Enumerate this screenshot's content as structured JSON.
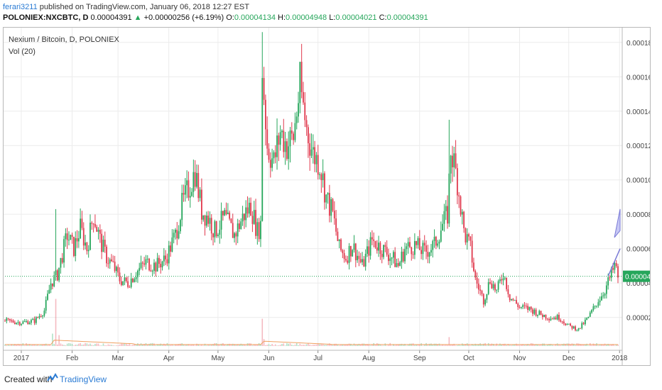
{
  "header": {
    "author": "ferari3211",
    "published_text": "published on TradingView.com, January 06, 2018 12:27 EST"
  },
  "ohlc": {
    "symbol": "POLONIEX:NXCBTC, D",
    "last": "0.00004391",
    "arrow": "▲",
    "change": "+0.00000256 (+6.19%)",
    "o_label": "O:",
    "o": "0.00004134",
    "h_label": "H:",
    "h": "0.00004948",
    "l_label": "L:",
    "l": "0.00004021",
    "c_label": "C:",
    "c": "0.00004391"
  },
  "legend": {
    "title": "Nexium / Bitcoin, D, POLONIEX",
    "volume": "Vol (20)"
  },
  "footer": {
    "created_with": "Created with",
    "brand": "TradingView"
  },
  "colors": {
    "up": "#26a65b",
    "down": "#e0394d",
    "grid": "#ececec",
    "price_line": "#26a65b",
    "accent": "#2a7bd4",
    "vol_ma": "#f0a060",
    "projection_fill": "#c7c8f5"
  },
  "chart_data": {
    "type": "candlestick",
    "title": "Nexium / Bitcoin, D, POLONIEX",
    "y_ticks": [
      "0.00018000",
      "0.00016000",
      "0.00014000",
      "0.00012000",
      "0.00010000",
      "0.00008000",
      "0.00006000",
      "0.00004000",
      "0.00002000"
    ],
    "y_range": [
      2.5e-06,
      0.000189
    ],
    "last_price_label": "0.00004391",
    "last_price": 4.391e-05,
    "x_labels": [
      "2017",
      "Feb",
      "Mar",
      "Apr",
      "May",
      "Jun",
      "Jul",
      "Aug",
      "Sep",
      "Oct",
      "Nov",
      "Dec",
      "2018"
    ],
    "price_path_day_close": [
      [
        0,
        1.8e-05
      ],
      [
        10,
        1.7e-05
      ],
      [
        18,
        1.8e-05
      ],
      [
        24,
        2.4e-05
      ],
      [
        28,
        4e-05
      ],
      [
        32,
        4.5e-05
      ],
      [
        38,
        6.8e-05
      ],
      [
        42,
        6e-05
      ],
      [
        46,
        7.2e-05
      ],
      [
        50,
        6e-05
      ],
      [
        54,
        8e-05
      ],
      [
        58,
        6.5e-05
      ],
      [
        62,
        5.5e-05
      ],
      [
        66,
        5e-05
      ],
      [
        70,
        4.2e-05
      ],
      [
        75,
        4e-05
      ],
      [
        80,
        4.6e-05
      ],
      [
        86,
        5.2e-05
      ],
      [
        92,
        5e-05
      ],
      [
        98,
        5.4e-05
      ],
      [
        104,
        6.8e-05
      ],
      [
        108,
        8.5e-05
      ],
      [
        112,
        9.5e-05
      ],
      [
        116,
        0.000105
      ],
      [
        120,
        8.2e-05
      ],
      [
        124,
        7.8e-05
      ],
      [
        128,
        7e-05
      ],
      [
        134,
        7.8e-05
      ],
      [
        140,
        6.8e-05
      ],
      [
        146,
        8e-05
      ],
      [
        150,
        8.5e-05
      ],
      [
        154,
        7e-05
      ],
      [
        156,
        7.4e-05
      ],
      [
        157,
        0.000165
      ],
      [
        160,
        0.00012
      ],
      [
        164,
        0.00011
      ],
      [
        168,
        0.000128
      ],
      [
        172,
        0.00012
      ],
      [
        176,
        0.000125
      ],
      [
        180,
        0.000155
      ],
      [
        184,
        0.00013
      ],
      [
        188,
        0.000115
      ],
      [
        192,
        0.00011
      ],
      [
        196,
        9e-05
      ],
      [
        200,
        8e-05
      ],
      [
        204,
        6e-05
      ],
      [
        208,
        5.5e-05
      ],
      [
        212,
        6.2e-05
      ],
      [
        218,
        5e-05
      ],
      [
        224,
        6.5e-05
      ],
      [
        230,
        6e-05
      ],
      [
        236,
        5.5e-05
      ],
      [
        240,
        5e-05
      ],
      [
        244,
        6e-05
      ],
      [
        250,
        6.2e-05
      ],
      [
        256,
        5.8e-05
      ],
      [
        262,
        6.2e-05
      ],
      [
        266,
        7.2e-05
      ],
      [
        270,
        8e-05
      ],
      [
        272,
        0.000118
      ],
      [
        276,
        0.0001
      ],
      [
        280,
        7e-05
      ],
      [
        284,
        6e-05
      ],
      [
        287,
        4.2e-05
      ],
      [
        292,
        3e-05
      ],
      [
        296,
        4.2e-05
      ],
      [
        300,
        3.5e-05
      ],
      [
        304,
        4.6e-05
      ],
      [
        308,
        3.2e-05
      ],
      [
        314,
        2.6e-05
      ],
      [
        320,
        2.5e-05
      ],
      [
        326,
        2.2e-05
      ],
      [
        332,
        2e-05
      ],
      [
        338,
        2e-05
      ],
      [
        344,
        1.5e-05
      ],
      [
        350,
        1.3e-05
      ],
      [
        356,
        2e-05
      ],
      [
        362,
        3e-05
      ],
      [
        366,
        3.6e-05
      ],
      [
        370,
        4.5e-05
      ],
      [
        372,
        5e-05
      ],
      [
        374,
        4.4e-05
      ]
    ],
    "volume_spikes_day_value": [
      [
        29,
        0.25
      ],
      [
        31,
        0.95
      ],
      [
        33,
        0.22
      ],
      [
        157,
        0.55
      ],
      [
        158,
        0.14
      ],
      [
        271,
        0.18
      ]
    ],
    "volume_ma_level": 0.12
  }
}
